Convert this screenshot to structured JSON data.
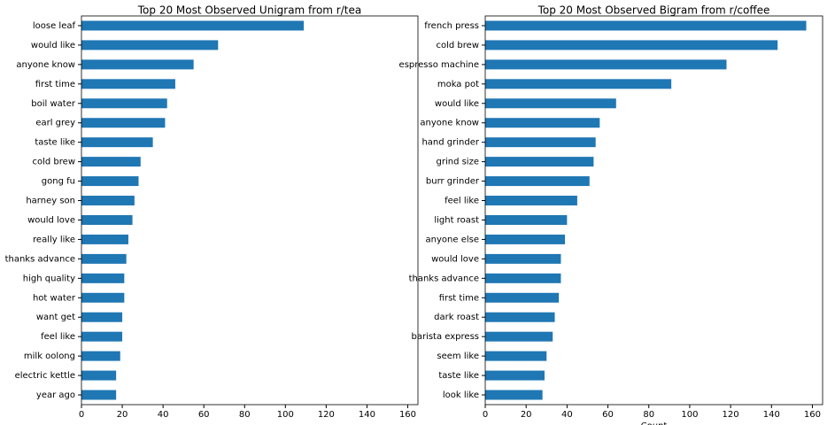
{
  "chart_data": [
    {
      "type": "barh",
      "title": "Top 20 Most Observed Unigram from r/tea",
      "color": "#1f77b4",
      "categories": [
        "loose leaf",
        "would like",
        "anyone know",
        "first time",
        "boil water",
        "earl grey",
        "taste like",
        "cold brew",
        "gong fu",
        "harney son",
        "would love",
        "really like",
        "thanks advance",
        "high quality",
        "hot water",
        "want get",
        "feel like",
        "milk oolong",
        "electric kettle",
        "year ago"
      ],
      "values": [
        109,
        67,
        55,
        46,
        42,
        41,
        35,
        29,
        28,
        26,
        25,
        23,
        22,
        21,
        21,
        20,
        20,
        19,
        17,
        17
      ],
      "xlim": [
        0,
        165
      ],
      "xticks": [
        0,
        20,
        40,
        60,
        80,
        100,
        120,
        140,
        160
      ]
    },
    {
      "type": "barh",
      "title": "Top 20 Most Observed Bigram from r/coffee",
      "color": "#1f77b4",
      "x_label": "Count",
      "categories": [
        "french press",
        "cold brew",
        "espresso machine",
        "moka pot",
        "would like",
        "anyone know",
        "hand grinder",
        "grind size",
        "burr grinder",
        "feel like",
        "light roast",
        "anyone else",
        "would love",
        "thanks advance",
        "first time",
        "dark roast",
        "barista express",
        "seem like",
        "taste like",
        "look like"
      ],
      "values": [
        157,
        143,
        118,
        91,
        64,
        56,
        54,
        53,
        51,
        45,
        40,
        39,
        37,
        37,
        36,
        34,
        33,
        30,
        29,
        28
      ],
      "xlim": [
        0,
        165
      ],
      "xticks": [
        0,
        20,
        40,
        60,
        80,
        100,
        120,
        140,
        160
      ]
    }
  ]
}
